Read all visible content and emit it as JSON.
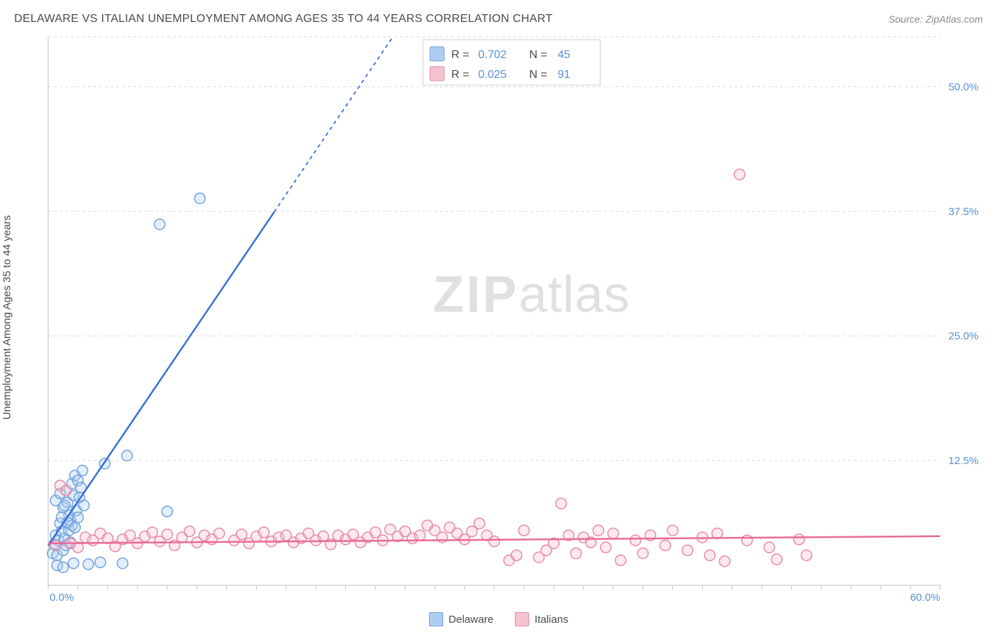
{
  "title": "DELAWARE VS ITALIAN UNEMPLOYMENT AMONG AGES 35 TO 44 YEARS CORRELATION CHART",
  "source": "Source: ZipAtlas.com",
  "ylabel": "Unemployment Among Ages 35 to 44 years",
  "watermark": {
    "bold": "ZIP",
    "rest": "atlas"
  },
  "chart": {
    "type": "scatter",
    "xlim": [
      0,
      60
    ],
    "ylim": [
      0,
      55
    ],
    "x_axis_labels": {
      "min": "0.0%",
      "max": "60.0%"
    },
    "y_ticks": [
      {
        "v": 12.5,
        "label": "12.5%"
      },
      {
        "v": 25.0,
        "label": "25.0%"
      },
      {
        "v": 37.5,
        "label": "37.5%"
      },
      {
        "v": 50.0,
        "label": "50.0%"
      }
    ],
    "x_minor_step": 2,
    "grid_color": "#d9d9d9",
    "axis_color": "#bfbfbf",
    "background_color": "#ffffff",
    "marker_radius": 7.5,
    "series": [
      {
        "name": "Delaware",
        "fill": "#aecdf2",
        "stroke": "#6fa3e0",
        "trend": {
          "color": "#3b6fd6",
          "y_at_x0": 4.0,
          "slope": 2.2,
          "solid_until_x": 15.2
        },
        "points": [
          [
            0.3,
            3.2
          ],
          [
            0.4,
            4.1
          ],
          [
            0.5,
            5.0
          ],
          [
            0.6,
            3.0
          ],
          [
            0.7,
            4.5
          ],
          [
            0.8,
            6.2
          ],
          [
            0.9,
            5.4
          ],
          [
            1.0,
            7.8
          ],
          [
            1.0,
            3.5
          ],
          [
            1.1,
            4.7
          ],
          [
            1.2,
            9.5
          ],
          [
            1.3,
            8.3
          ],
          [
            1.4,
            7.0
          ],
          [
            1.5,
            6.5
          ],
          [
            1.6,
            10.2
          ],
          [
            1.7,
            9.0
          ],
          [
            1.8,
            11.0
          ],
          [
            2.0,
            10.5
          ],
          [
            2.1,
            8.8
          ],
          [
            2.2,
            9.8
          ],
          [
            2.3,
            11.5
          ],
          [
            0.6,
            2.0
          ],
          [
            1.0,
            1.8
          ],
          [
            1.7,
            2.2
          ],
          [
            2.7,
            2.1
          ],
          [
            3.5,
            2.3
          ],
          [
            5.0,
            2.2
          ],
          [
            3.8,
            12.2
          ],
          [
            5.3,
            13.0
          ],
          [
            8.0,
            7.4
          ],
          [
            0.9,
            6.8
          ],
          [
            1.2,
            4.0
          ],
          [
            1.4,
            5.5
          ],
          [
            1.6,
            6.0
          ],
          [
            1.9,
            7.5
          ],
          [
            0.5,
            8.5
          ],
          [
            0.8,
            9.2
          ],
          [
            1.1,
            8.0
          ],
          [
            1.3,
            6.3
          ],
          [
            1.5,
            4.3
          ],
          [
            1.8,
            5.8
          ],
          [
            2.0,
            6.8
          ],
          [
            2.4,
            8.0
          ],
          [
            7.5,
            36.2
          ],
          [
            10.2,
            38.8
          ]
        ]
      },
      {
        "name": "Italians",
        "fill": "#f5c3d0",
        "stroke": "#e98aa6",
        "trend": {
          "color": "#e86b94",
          "y_at_x0": 4.2,
          "slope": 0.012,
          "solid_until_x": 60
        },
        "points": [
          [
            0.5,
            4.0
          ],
          [
            0.8,
            10.0
          ],
          [
            1.2,
            9.5
          ],
          [
            1.5,
            4.2
          ],
          [
            2.0,
            3.8
          ],
          [
            2.5,
            4.8
          ],
          [
            3.0,
            4.5
          ],
          [
            3.5,
            5.2
          ],
          [
            4.0,
            4.7
          ],
          [
            4.5,
            3.9
          ],
          [
            5.0,
            4.6
          ],
          [
            5.5,
            5.0
          ],
          [
            6.0,
            4.2
          ],
          [
            6.5,
            4.9
          ],
          [
            7.0,
            5.3
          ],
          [
            7.5,
            4.4
          ],
          [
            8.0,
            5.1
          ],
          [
            8.5,
            4.0
          ],
          [
            9.0,
            4.8
          ],
          [
            9.5,
            5.4
          ],
          [
            10.0,
            4.3
          ],
          [
            10.5,
            5.0
          ],
          [
            11.0,
            4.6
          ],
          [
            11.5,
            5.2
          ],
          [
            12.5,
            4.5
          ],
          [
            13.0,
            5.1
          ],
          [
            13.5,
            4.2
          ],
          [
            14.0,
            4.9
          ],
          [
            14.5,
            5.3
          ],
          [
            15.0,
            4.4
          ],
          [
            15.5,
            4.8
          ],
          [
            16.0,
            5.0
          ],
          [
            16.5,
            4.3
          ],
          [
            17.0,
            4.7
          ],
          [
            17.5,
            5.2
          ],
          [
            18.0,
            4.5
          ],
          [
            18.5,
            4.9
          ],
          [
            19.0,
            4.1
          ],
          [
            19.5,
            5.0
          ],
          [
            20.0,
            4.6
          ],
          [
            20.5,
            5.1
          ],
          [
            21.0,
            4.3
          ],
          [
            21.5,
            4.8
          ],
          [
            22.0,
            5.3
          ],
          [
            22.5,
            4.5
          ],
          [
            23.0,
            5.6
          ],
          [
            23.5,
            4.9
          ],
          [
            24.0,
            5.4
          ],
          [
            24.5,
            4.7
          ],
          [
            25.0,
            5.0
          ],
          [
            25.5,
            6.0
          ],
          [
            26.0,
            5.5
          ],
          [
            26.5,
            4.8
          ],
          [
            27.0,
            5.8
          ],
          [
            27.5,
            5.2
          ],
          [
            28.0,
            4.6
          ],
          [
            28.5,
            5.4
          ],
          [
            29.0,
            6.2
          ],
          [
            29.5,
            5.0
          ],
          [
            30.0,
            4.4
          ],
          [
            31.0,
            2.5
          ],
          [
            31.5,
            3.0
          ],
          [
            32.0,
            5.5
          ],
          [
            33.0,
            2.8
          ],
          [
            33.5,
            3.5
          ],
          [
            34.0,
            4.2
          ],
          [
            34.5,
            8.2
          ],
          [
            35.0,
            5.0
          ],
          [
            35.5,
            3.2
          ],
          [
            36.0,
            4.8
          ],
          [
            36.5,
            4.3
          ],
          [
            37.0,
            5.5
          ],
          [
            37.5,
            3.8
          ],
          [
            38.0,
            5.2
          ],
          [
            38.5,
            2.5
          ],
          [
            39.5,
            4.5
          ],
          [
            40.0,
            3.2
          ],
          [
            40.5,
            5.0
          ],
          [
            41.5,
            4.0
          ],
          [
            42.0,
            5.5
          ],
          [
            43.0,
            3.5
          ],
          [
            44.0,
            4.8
          ],
          [
            44.5,
            3.0
          ],
          [
            45.0,
            5.2
          ],
          [
            45.5,
            2.4
          ],
          [
            47.0,
            4.5
          ],
          [
            48.5,
            3.8
          ],
          [
            49.0,
            2.6
          ],
          [
            50.5,
            4.6
          ],
          [
            51.0,
            3.0
          ],
          [
            46.5,
            41.2
          ]
        ]
      }
    ]
  },
  "rbox": {
    "rows": [
      {
        "swatch_fill": "#aecdf2",
        "swatch_stroke": "#6fa3e0",
        "r_label": "R =",
        "r_value": "0.702",
        "n_label": "N =",
        "n_value": "45"
      },
      {
        "swatch_fill": "#f5c3d0",
        "swatch_stroke": "#e98aa6",
        "r_label": "R =",
        "r_value": "0.025",
        "n_label": "N =",
        "n_value": "91"
      }
    ],
    "label_color": "#4a4a4a",
    "value_color": "#5a8fd6"
  },
  "legend_bottom": [
    {
      "fill": "#aecdf2",
      "stroke": "#6fa3e0",
      "label": "Delaware"
    },
    {
      "fill": "#f5c3d0",
      "stroke": "#e98aa6",
      "label": "Italians"
    }
  ]
}
